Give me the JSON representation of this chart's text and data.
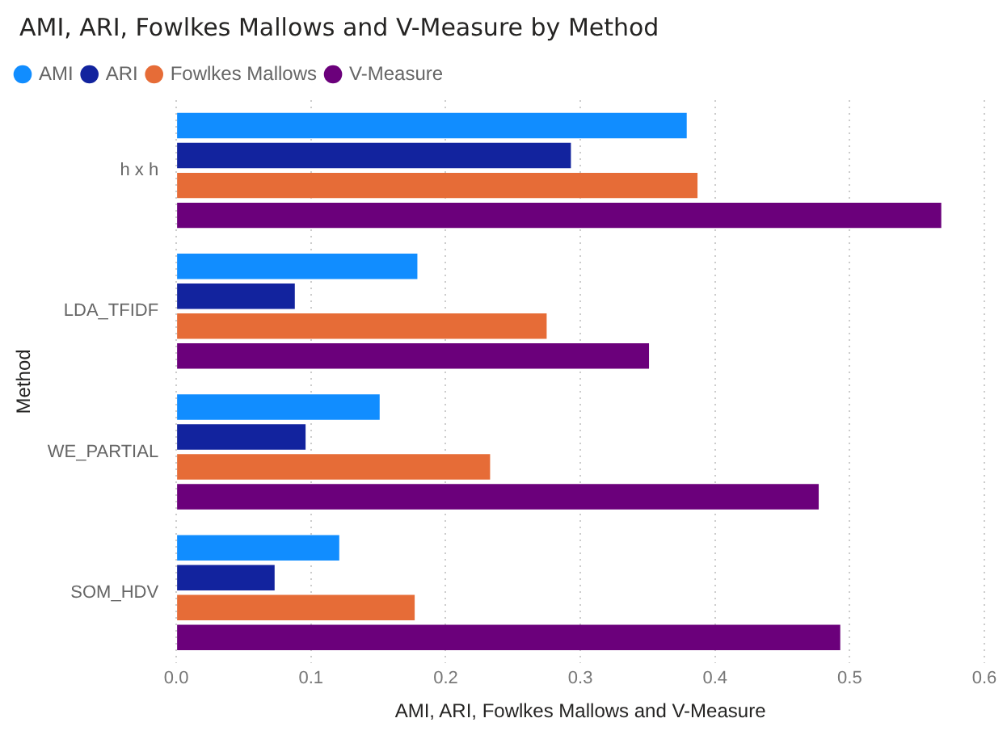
{
  "chart_data": {
    "type": "bar",
    "orientation": "horizontal",
    "title": "AMI, ARI, Fowlkes Mallows and V-Measure by Method",
    "xlabel": "AMI, ARI, Fowlkes Mallows and V-Measure",
    "ylabel": "Method",
    "categories": [
      "h x h",
      "LDA_TFIDF",
      "WE_PARTIAL",
      "SOM_HDV"
    ],
    "series": [
      {
        "name": "AMI",
        "color": "#118dff",
        "values": [
          0.379,
          0.179,
          0.151,
          0.121
        ]
      },
      {
        "name": "ARI",
        "color": "#12239e",
        "values": [
          0.293,
          0.088,
          0.096,
          0.073
        ]
      },
      {
        "name": "Fowlkes Mallows",
        "color": "#e66c37",
        "values": [
          0.387,
          0.275,
          0.233,
          0.177
        ]
      },
      {
        "name": "V-Measure",
        "color": "#6b007b",
        "values": [
          0.568,
          0.351,
          0.477,
          0.493
        ]
      }
    ],
    "xlim": [
      0,
      0.6
    ],
    "xticks": [
      {
        "value": 0,
        "label": "0.0"
      },
      0.1,
      0.2,
      0.3,
      0.4,
      0.5,
      0.6
    ],
    "grid": "x",
    "legend": "top left"
  }
}
